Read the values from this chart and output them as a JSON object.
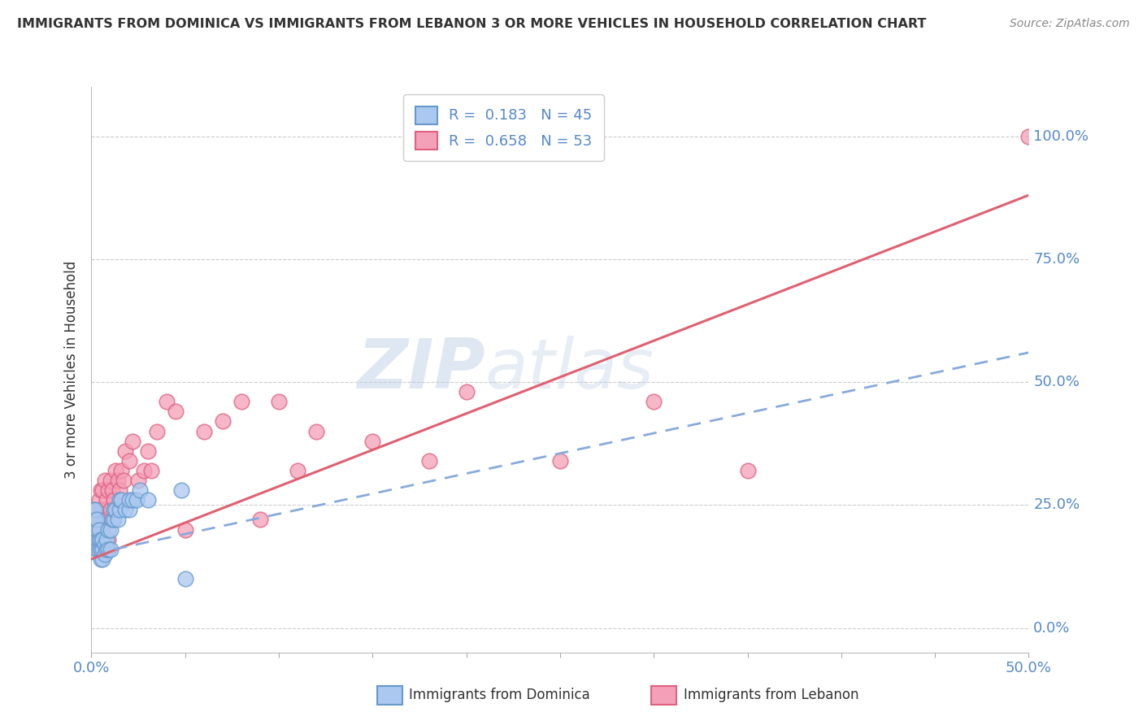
{
  "title": "IMMIGRANTS FROM DOMINICA VS IMMIGRANTS FROM LEBANON 3 OR MORE VEHICLES IN HOUSEHOLD CORRELATION CHART",
  "source": "Source: ZipAtlas.com",
  "ylabel": "3 or more Vehicles in Household",
  "xlim": [
    0.0,
    0.5
  ],
  "ylim": [
    -0.05,
    1.1
  ],
  "xticks": [
    0.0,
    0.05,
    0.1,
    0.15,
    0.2,
    0.25,
    0.3,
    0.35,
    0.4,
    0.45,
    0.5
  ],
  "xtick_labels": [
    "0.0%",
    "",
    "",
    "",
    "",
    "",
    "",
    "",
    "",
    "",
    "50.0%"
  ],
  "yticks": [
    0.0,
    0.25,
    0.5,
    0.75,
    1.0
  ],
  "ytick_labels": [
    "0.0%",
    "25.0%",
    "50.0%",
    "75.0%",
    "100.0%"
  ],
  "dominica_R": 0.183,
  "dominica_N": 45,
  "lebanon_R": 0.658,
  "lebanon_N": 53,
  "dominica_color": "#aac8f0",
  "lebanon_color": "#f4a0b8",
  "dominica_edge_color": "#6699cc",
  "lebanon_edge_color": "#e06080",
  "dominica_line_color": "#88aadd",
  "lebanon_line_color": "#e06070",
  "title_color": "#333333",
  "axis_label_color": "#333333",
  "tick_color": "#5588cc",
  "watermark_zip": "ZIP",
  "watermark_atlas": "atlas",
  "background_color": "#ffffff",
  "grid_color": "#cccccc",
  "dominica_x": [
    0.001,
    0.001,
    0.001,
    0.002,
    0.002,
    0.002,
    0.002,
    0.003,
    0.003,
    0.003,
    0.003,
    0.004,
    0.004,
    0.004,
    0.005,
    0.005,
    0.005,
    0.006,
    0.006,
    0.006,
    0.007,
    0.007,
    0.008,
    0.008,
    0.009,
    0.009,
    0.01,
    0.01,
    0.011,
    0.012,
    0.012,
    0.013,
    0.014,
    0.015,
    0.015,
    0.016,
    0.018,
    0.02,
    0.02,
    0.022,
    0.024,
    0.026,
    0.03,
    0.048,
    0.05
  ],
  "dominica_y": [
    0.22,
    0.24,
    0.18,
    0.2,
    0.22,
    0.24,
    0.18,
    0.18,
    0.2,
    0.22,
    0.16,
    0.16,
    0.18,
    0.2,
    0.14,
    0.16,
    0.18,
    0.14,
    0.16,
    0.18,
    0.15,
    0.17,
    0.16,
    0.18,
    0.16,
    0.2,
    0.16,
    0.2,
    0.22,
    0.22,
    0.24,
    0.24,
    0.22,
    0.24,
    0.26,
    0.26,
    0.24,
    0.24,
    0.26,
    0.26,
    0.26,
    0.28,
    0.26,
    0.28,
    0.1
  ],
  "lebanon_x": [
    0.001,
    0.002,
    0.002,
    0.003,
    0.003,
    0.004,
    0.004,
    0.005,
    0.005,
    0.005,
    0.006,
    0.006,
    0.006,
    0.007,
    0.007,
    0.008,
    0.008,
    0.009,
    0.009,
    0.01,
    0.01,
    0.011,
    0.012,
    0.013,
    0.014,
    0.015,
    0.016,
    0.017,
    0.018,
    0.02,
    0.022,
    0.025,
    0.028,
    0.03,
    0.032,
    0.035,
    0.04,
    0.045,
    0.05,
    0.06,
    0.07,
    0.08,
    0.09,
    0.1,
    0.11,
    0.12,
    0.15,
    0.18,
    0.2,
    0.25,
    0.3,
    0.35,
    0.5
  ],
  "lebanon_y": [
    0.18,
    0.2,
    0.22,
    0.18,
    0.24,
    0.2,
    0.26,
    0.22,
    0.24,
    0.28,
    0.2,
    0.24,
    0.28,
    0.24,
    0.3,
    0.22,
    0.26,
    0.18,
    0.28,
    0.24,
    0.3,
    0.28,
    0.26,
    0.32,
    0.3,
    0.28,
    0.32,
    0.3,
    0.36,
    0.34,
    0.38,
    0.3,
    0.32,
    0.36,
    0.32,
    0.4,
    0.46,
    0.44,
    0.2,
    0.4,
    0.42,
    0.46,
    0.22,
    0.46,
    0.32,
    0.4,
    0.38,
    0.34,
    0.48,
    0.34,
    0.46,
    0.32,
    1.0
  ],
  "trendline_x_start": 0.0,
  "trendline_x_end": 0.5
}
